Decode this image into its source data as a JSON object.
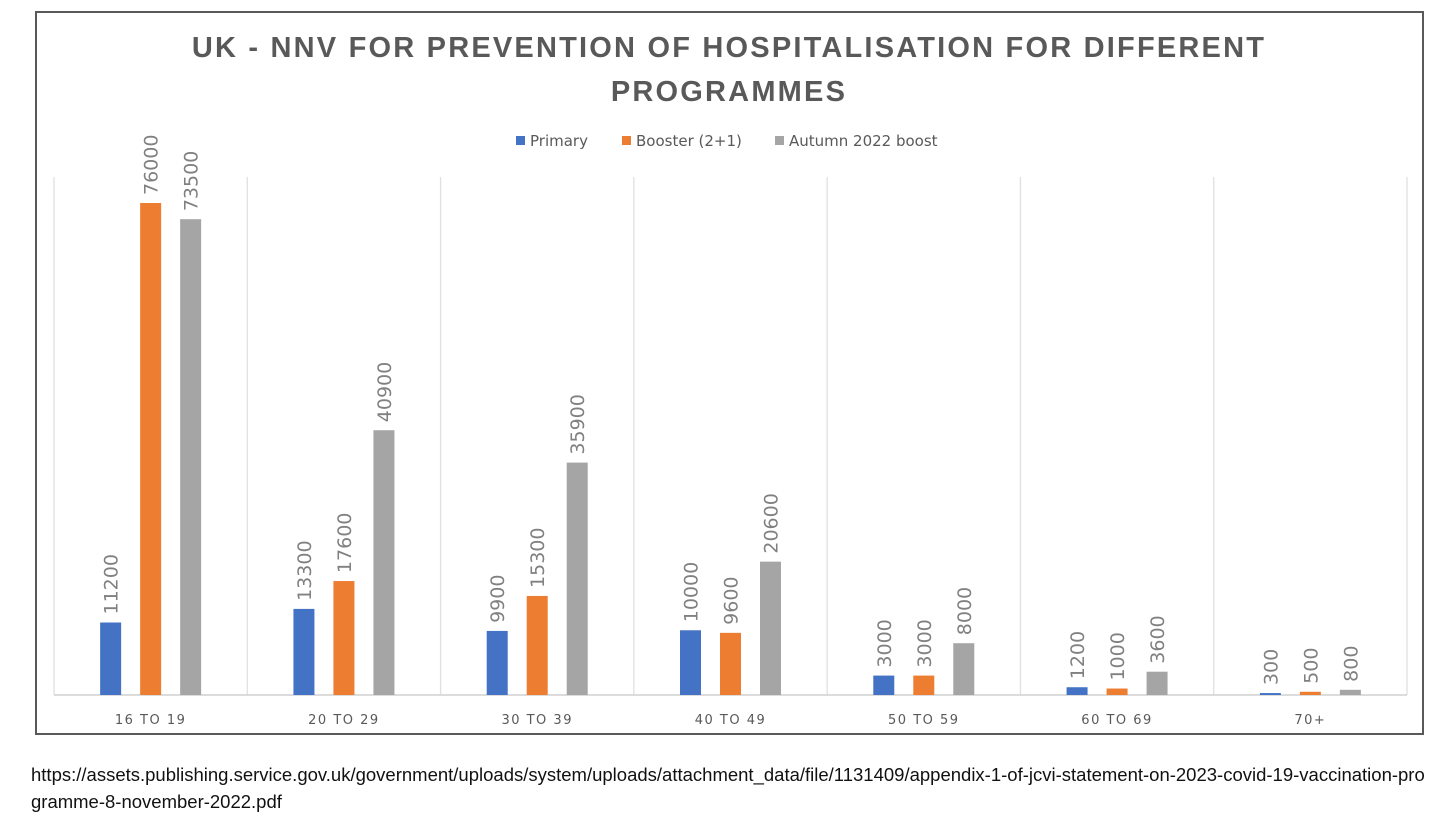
{
  "chart_data": {
    "type": "bar",
    "title": "UK - NNV FOR PREVENTION OF HOSPITALISATION FOR DIFFERENT PROGRAMMES",
    "title_lines": [
      "UK - NNV FOR PREVENTION OF HOSPITALISATION FOR DIFFERENT",
      "PROGRAMMES"
    ],
    "categories": [
      "16 TO 19",
      "20 TO 29",
      "30 TO 39",
      "40 TO 49",
      "50 TO 59",
      "60 TO 69",
      "70+"
    ],
    "series": [
      {
        "name": "Primary",
        "color": "#4472C4",
        "values": [
          11200,
          13300,
          9900,
          10000,
          3000,
          1200,
          300
        ]
      },
      {
        "name": "Booster (2+1)",
        "color": "#ED7D31",
        "values": [
          76000,
          17600,
          15300,
          9600,
          3000,
          1000,
          500
        ]
      },
      {
        "name": "Autumn 2022 boost",
        "color": "#A5A5A5",
        "values": [
          73500,
          40900,
          35900,
          20600,
          8000,
          3600,
          800
        ]
      }
    ],
    "xlabel": "",
    "ylabel": "",
    "ylim": [
      0,
      80000
    ],
    "y_axis_visible": false,
    "grid": "vertical category separators",
    "legend_position": "top",
    "data_labels": "rotated vertical above bars"
  },
  "source": {
    "text": "https://assets.publishing.service.gov.uk/government/uploads/system/uploads/attachment_data/file/1131409/appendix-1-of-jcvi-statement-on-2023-covid-19-vaccination-programme-8-november-2022.pdf"
  }
}
